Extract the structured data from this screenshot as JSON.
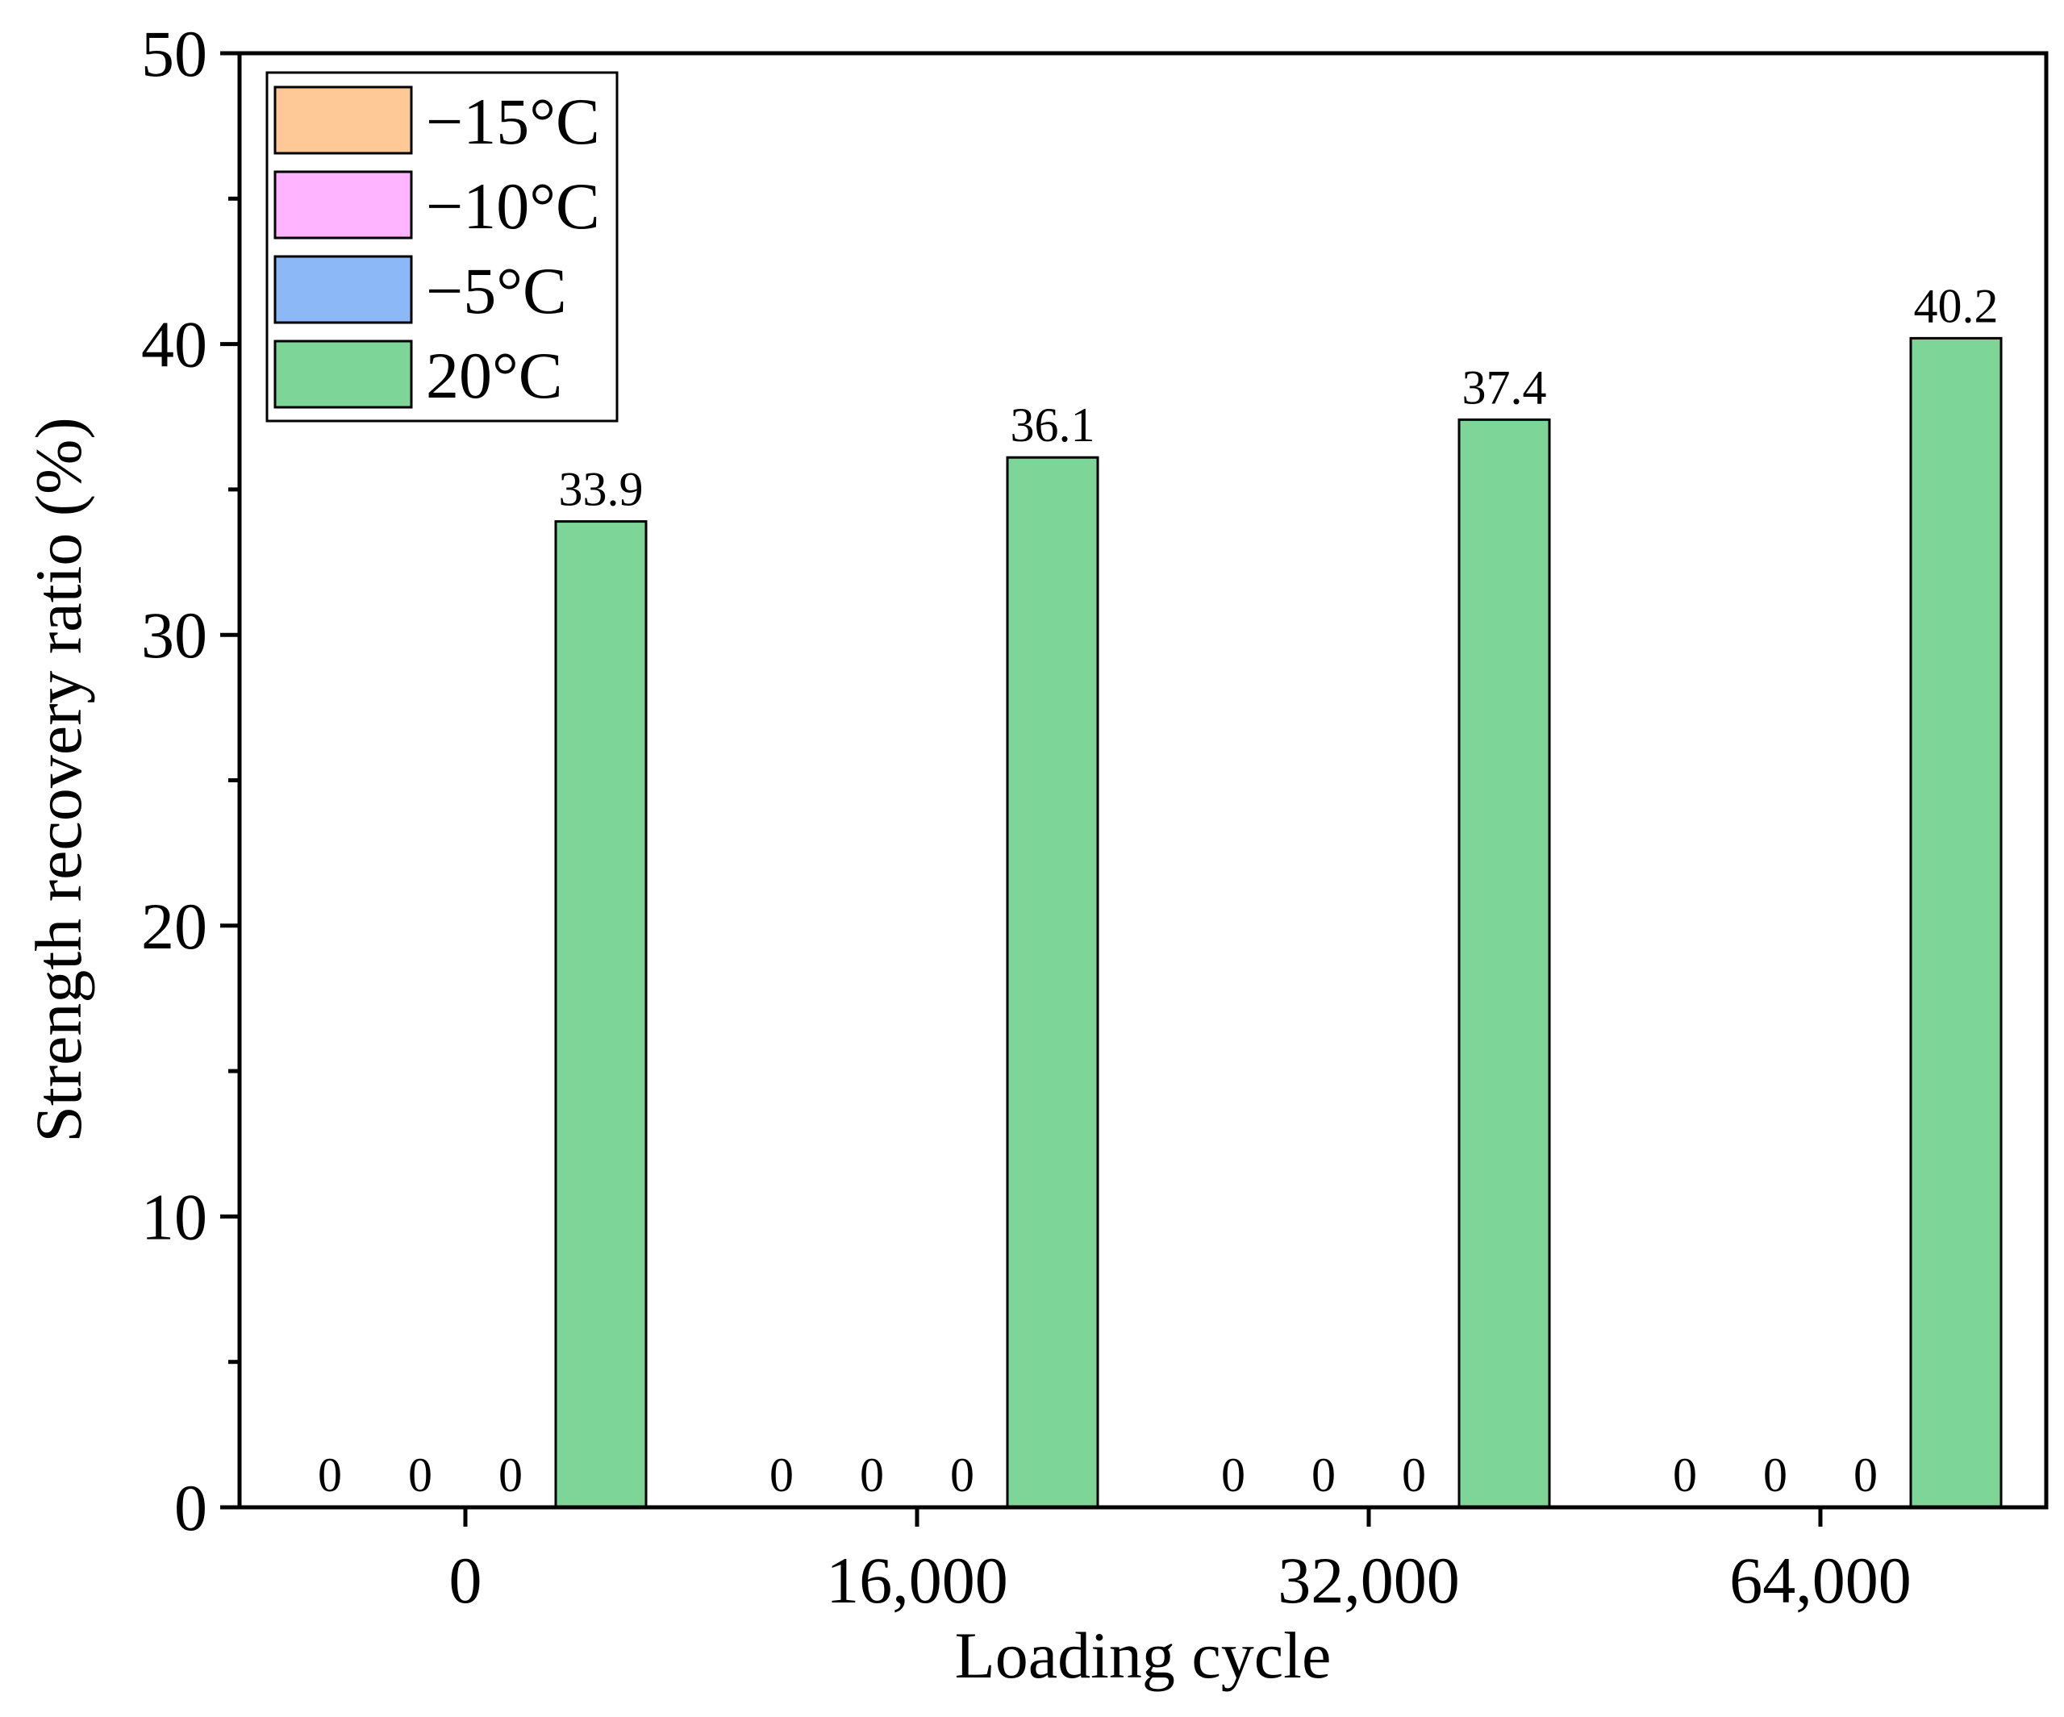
{
  "chart_data": {
    "type": "bar",
    "title": "",
    "xlabel": "Loading cycle",
    "ylabel": "Strength recovery ratio (%)",
    "ylim": [
      0,
      50
    ],
    "yticks": [
      "0",
      "10",
      "20",
      "30",
      "40",
      "50"
    ],
    "categories": [
      "0",
      "16,000",
      "32,000",
      "64,000"
    ],
    "series": [
      {
        "name": "−15°C",
        "color": "#FFC896",
        "values": [
          0,
          0,
          0,
          0
        ],
        "labels": [
          "0",
          "0",
          "0",
          "0"
        ]
      },
      {
        "name": "−10°C",
        "color": "#FFB4FF",
        "values": [
          0,
          0,
          0,
          0
        ],
        "labels": [
          "0",
          "0",
          "0",
          "0"
        ]
      },
      {
        "name": "−5°C",
        "color": "#8CB8F8",
        "values": [
          0,
          0,
          0,
          0
        ],
        "labels": [
          "0",
          "0",
          "0",
          "0"
        ]
      },
      {
        "name": "20°C",
        "color": "#7DD698",
        "values": [
          33.9,
          36.1,
          37.4,
          40.2
        ],
        "labels": [
          "33.9",
          "36.1",
          "37.4",
          "40.2"
        ]
      }
    ],
    "legend_position": "top-left",
    "grid": false
  }
}
